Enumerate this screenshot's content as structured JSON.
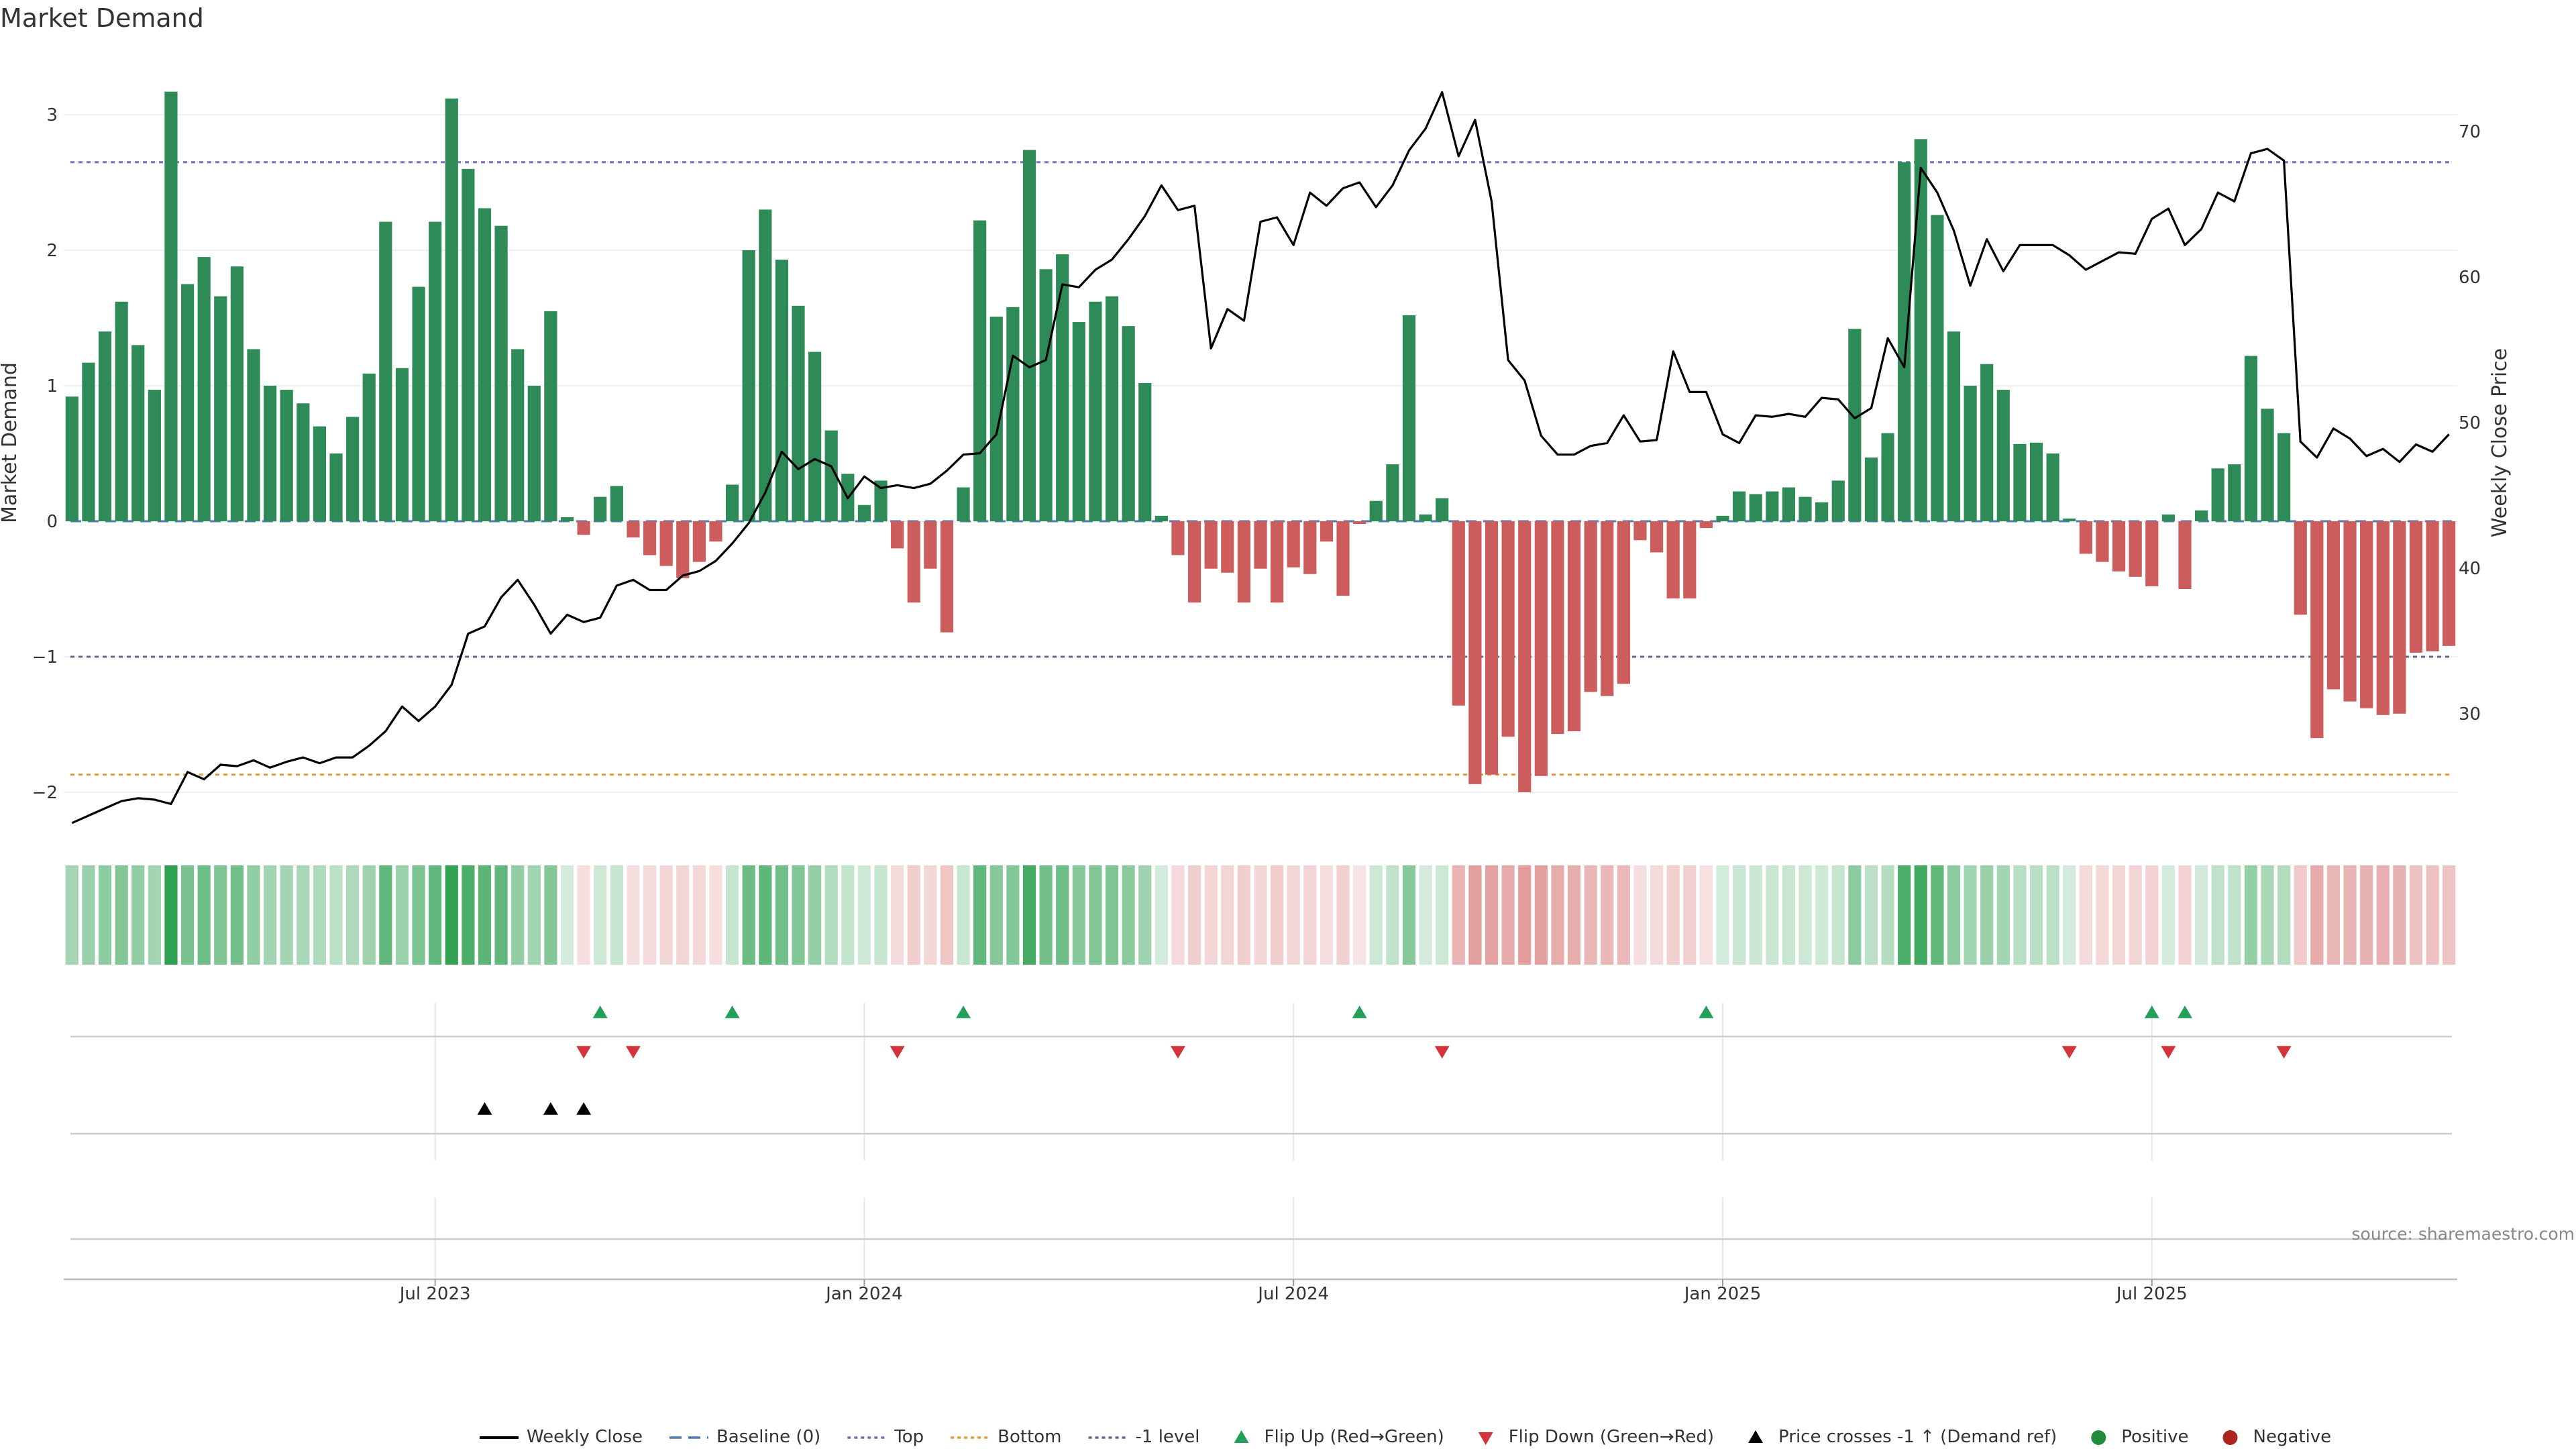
{
  "title": "Market Demand",
  "source": "source: sharemaestro.com",
  "chart_data": {
    "type": "bar",
    "bar_series": "Market Demand",
    "line_series": "Weekly Close",
    "ylabel": "Market Demand",
    "y2label": "Weekly Close Price",
    "ylim": [
      -2.3,
      3.6
    ],
    "y2lim": [
      22,
      75
    ],
    "yticks": [
      "3",
      "2",
      "1",
      "0",
      "−1",
      "−2"
    ],
    "ytick_values": [
      3,
      2,
      1,
      0,
      -1,
      -2
    ],
    "y2ticks": [
      "70",
      "60",
      "50",
      "40",
      "30"
    ],
    "y2tick_values": [
      70,
      60,
      50,
      40,
      30
    ],
    "xticks": [
      "Jul 2023",
      "Jan 2024",
      "Jul 2024",
      "Jan 2025",
      "Jul 2025"
    ],
    "xtick_weeks": [
      22,
      48,
      74,
      100,
      126
    ],
    "reference_lines": {
      "top": 2.65,
      "bottom": -1.87,
      "minus_one_level": -1,
      "baseline": 0
    },
    "demand": [
      0.92,
      1.17,
      1.4,
      1.62,
      1.3,
      0.97,
      3.17,
      1.75,
      1.95,
      1.66,
      1.88,
      1.27,
      1.0,
      0.97,
      0.87,
      0.7,
      0.5,
      0.77,
      1.09,
      2.21,
      1.13,
      1.73,
      2.21,
      3.12,
      2.6,
      2.31,
      2.18,
      1.27,
      1.0,
      1.55,
      0.03,
      -0.1,
      0.18,
      0.26,
      -0.12,
      -0.25,
      -0.33,
      -0.42,
      -0.3,
      -0.15,
      0.27,
      2.0,
      2.3,
      1.93,
      1.59,
      1.25,
      0.67,
      0.35,
      0.12,
      0.3,
      -0.2,
      -0.6,
      -0.35,
      -0.82,
      0.25,
      2.22,
      1.51,
      1.58,
      2.74,
      1.86,
      1.97,
      1.47,
      1.62,
      1.66,
      1.44,
      1.02,
      0.04,
      -0.25,
      -0.6,
      -0.35,
      -0.38,
      -0.6,
      -0.35,
      -0.6,
      -0.34,
      -0.39,
      -0.15,
      -0.55,
      -0.02,
      0.15,
      0.42,
      1.52,
      0.05,
      0.17,
      -1.36,
      -1.94,
      -1.87,
      -1.59,
      -2.0,
      -1.88,
      -1.57,
      -1.55,
      -1.26,
      -1.29,
      -1.2,
      -0.14,
      -0.23,
      -0.57,
      -0.57,
      -0.05,
      0.04,
      0.22,
      0.2,
      0.22,
      0.25,
      0.18,
      0.14,
      0.3,
      1.42,
      0.47,
      0.65,
      2.65,
      2.82,
      2.26,
      1.4,
      1.0,
      1.16,
      0.97,
      0.57,
      0.58,
      0.5,
      0.02,
      -0.24,
      -0.3,
      -0.37,
      -0.41,
      -0.48,
      0.05,
      -0.5,
      0.08,
      0.39,
      0.42,
      1.22,
      0.83,
      0.65,
      -0.69,
      -1.6,
      -1.24,
      -1.33,
      -1.38,
      -1.43,
      -1.42,
      -0.97,
      -0.96,
      -0.92
    ],
    "close": [
      22.5,
      23.0,
      23.5,
      24.0,
      24.2,
      24.1,
      23.8,
      26.0,
      25.5,
      26.5,
      26.4,
      26.8,
      26.3,
      26.7,
      27.0,
      26.6,
      27.0,
      27.0,
      27.8,
      28.8,
      30.5,
      29.5,
      30.5,
      32.0,
      35.5,
      36.0,
      38.0,
      39.2,
      37.5,
      35.5,
      36.8,
      36.3,
      36.6,
      38.8,
      39.2,
      38.5,
      38.5,
      39.5,
      39.8,
      40.5,
      41.7,
      43.1,
      45.2,
      48.0,
      46.8,
      47.5,
      47.0,
      44.8,
      46.3,
      45.5,
      45.7,
      45.5,
      45.8,
      46.7,
      47.8,
      47.9,
      49.2,
      54.6,
      53.8,
      54.3,
      59.5,
      59.3,
      60.5,
      61.2,
      62.6,
      64.2,
      66.3,
      64.6,
      64.9,
      55.1,
      57.8,
      57.0,
      63.8,
      64.1,
      62.2,
      65.8,
      64.9,
      66.1,
      66.5,
      64.8,
      66.3,
      68.7,
      70.2,
      72.7,
      68.3,
      70.8,
      65.2,
      54.3,
      52.9,
      49.1,
      47.8,
      47.8,
      48.4,
      48.6,
      50.5,
      48.7,
      48.8,
      54.9,
      52.1,
      52.1,
      49.2,
      48.6,
      50.5,
      50.4,
      50.6,
      50.4,
      51.7,
      51.6,
      50.3,
      51.0,
      55.8,
      53.8,
      67.5,
      65.8,
      63.2,
      59.4,
      62.6,
      60.4,
      62.2,
      62.2,
      62.2,
      61.5,
      60.5,
      61.1,
      61.7,
      61.6,
      64.0,
      64.7,
      62.2,
      63.3,
      65.8,
      65.2,
      68.5,
      68.8,
      68.0,
      48.7,
      47.6,
      49.6,
      48.9,
      47.7,
      48.2,
      47.3,
      48.5,
      48.0,
      49.2
    ],
    "flip_up_weeks": [
      32,
      40,
      54,
      78,
      99,
      126,
      128
    ],
    "flip_down_weeks": [
      31,
      34,
      50,
      67,
      83,
      121,
      127,
      134
    ],
    "price_cross_weeks": [
      25,
      29,
      31
    ],
    "legend": [
      {
        "label": "Weekly Close",
        "kind": "line",
        "color": "#000000"
      },
      {
        "label": "Baseline (0)",
        "kind": "dash",
        "color": "#4a7ab5"
      },
      {
        "label": "Top",
        "kind": "dot",
        "color": "#7b6fb8"
      },
      {
        "label": "Bottom",
        "kind": "dot",
        "color": "#e69a3c"
      },
      {
        "label": "-1 level",
        "kind": "dot",
        "color": "#666688"
      },
      {
        "label": "Flip Up (Red→Green)",
        "kind": "tri-up",
        "color": "#22a05a"
      },
      {
        "label": "Flip Down (Green→Red)",
        "kind": "tri-down",
        "color": "#d3333a"
      },
      {
        "label": "Price crosses -1 ↑ (Demand ref)",
        "kind": "tri-up",
        "color": "#000000"
      },
      {
        "label": "Positive",
        "kind": "circle",
        "color": "#228b3c"
      },
      {
        "label": "Negative",
        "kind": "circle",
        "color": "#b02323"
      }
    ],
    "colors": {
      "positive_bar": "#2e8b57",
      "negative_bar": "#cd5c5c",
      "close_line": "#000000",
      "grid": "#eeeeee"
    }
  }
}
